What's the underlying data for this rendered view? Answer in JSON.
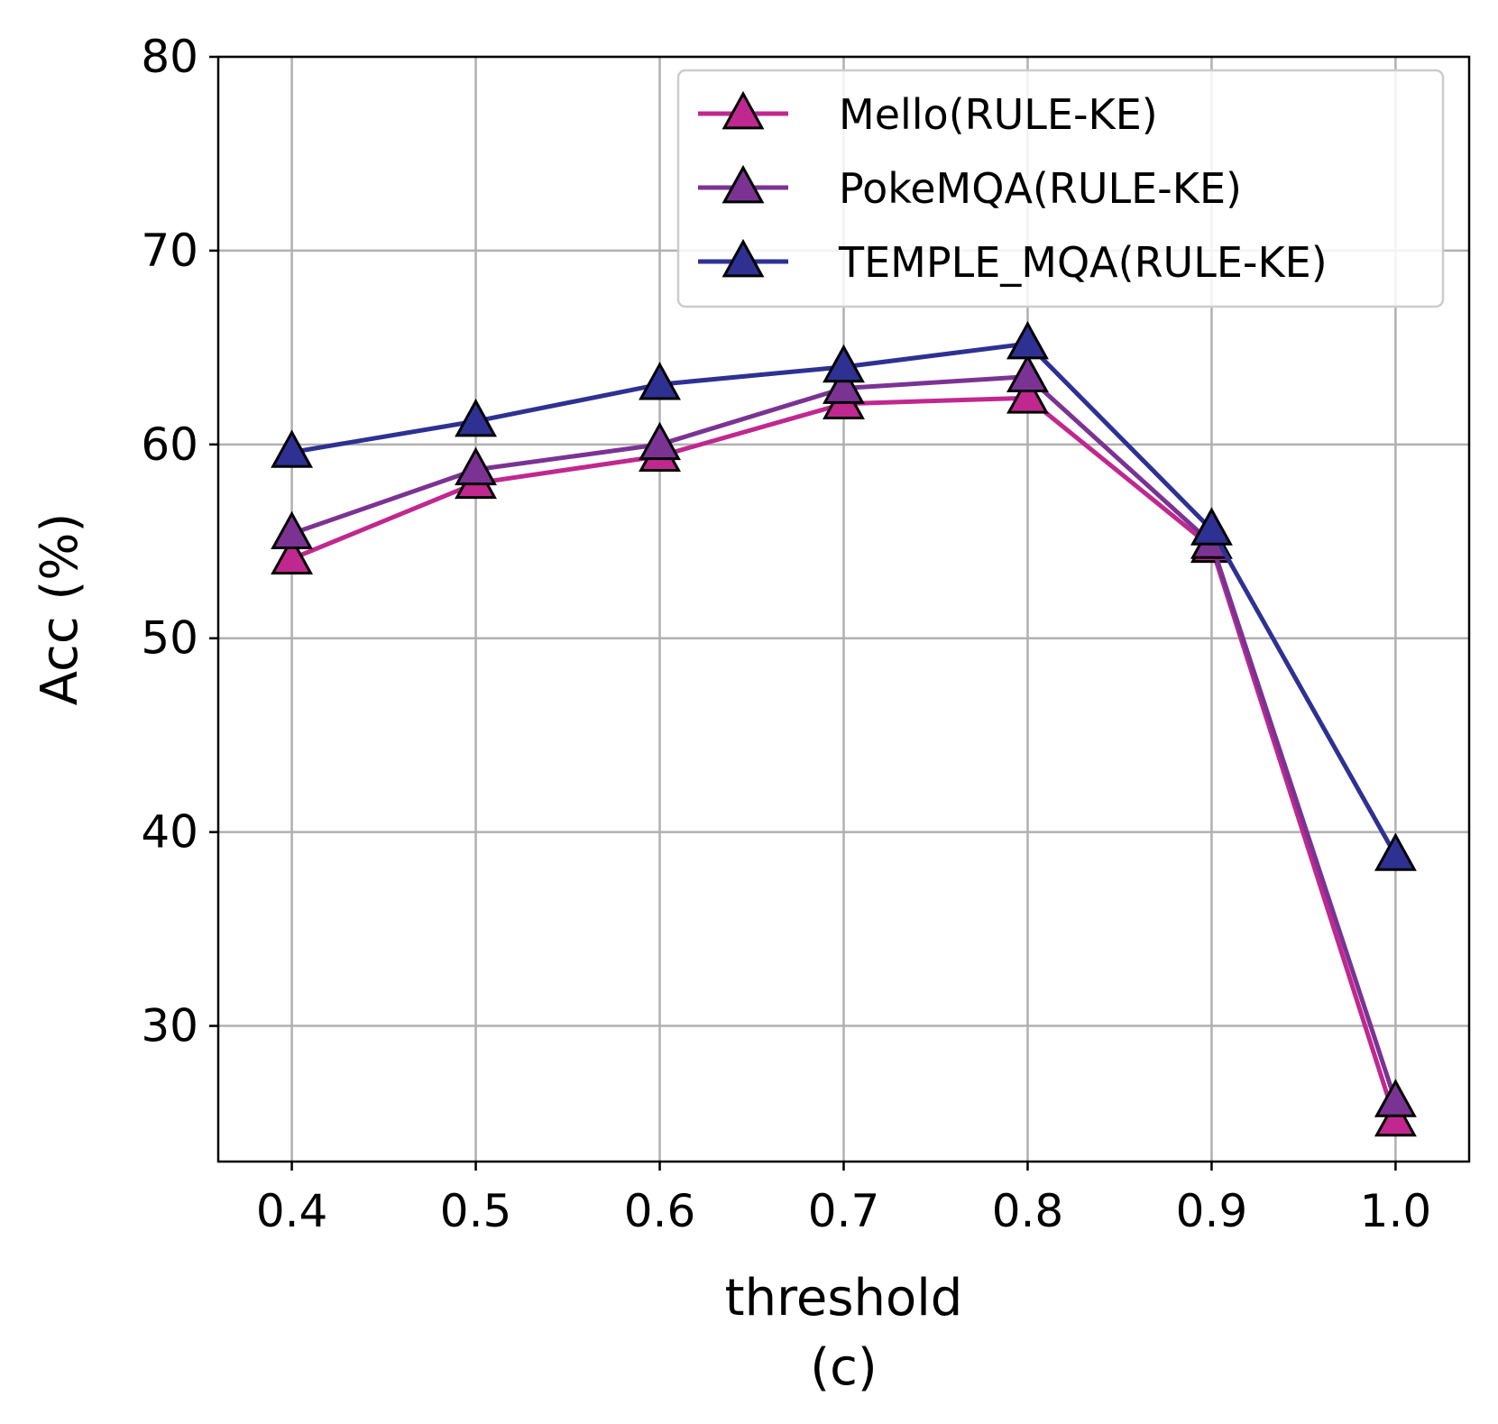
{
  "chart_data": {
    "type": "line",
    "xlabel": "threshold",
    "ylabel": "Acc (%)",
    "caption": "(c)",
    "x": [
      0.4,
      0.5,
      0.6,
      0.7,
      0.8,
      0.9,
      1.0
    ],
    "x_tick_labels": [
      "0.4",
      "0.5",
      "0.6",
      "0.7",
      "0.8",
      "0.9",
      "1.0"
    ],
    "xlim": [
      0.36,
      1.04
    ],
    "ylim": [
      23,
      80
    ],
    "y_ticks": [
      30,
      40,
      50,
      60,
      70,
      80
    ],
    "y_tick_labels": [
      "30",
      "40",
      "50",
      "60",
      "70",
      "80"
    ],
    "grid": true,
    "legend_position": "top-right",
    "marker": "triangle",
    "series": [
      {
        "name": "Mello(RULE-KE)",
        "color": "#C0288F",
        "values": [
          54.1,
          58.0,
          59.4,
          62.1,
          62.4,
          54.7,
          25.1
        ]
      },
      {
        "name": "PokeMQA(RULE-KE)",
        "color": "#7B3393",
        "values": [
          55.4,
          58.7,
          60.0,
          62.9,
          63.5,
          54.9,
          26.1
        ]
      },
      {
        "name": "TEMPLE_MQA(RULE-KE)",
        "color": "#2E3192",
        "values": [
          59.6,
          61.2,
          63.1,
          64.0,
          65.2,
          55.6,
          38.8
        ]
      }
    ]
  }
}
